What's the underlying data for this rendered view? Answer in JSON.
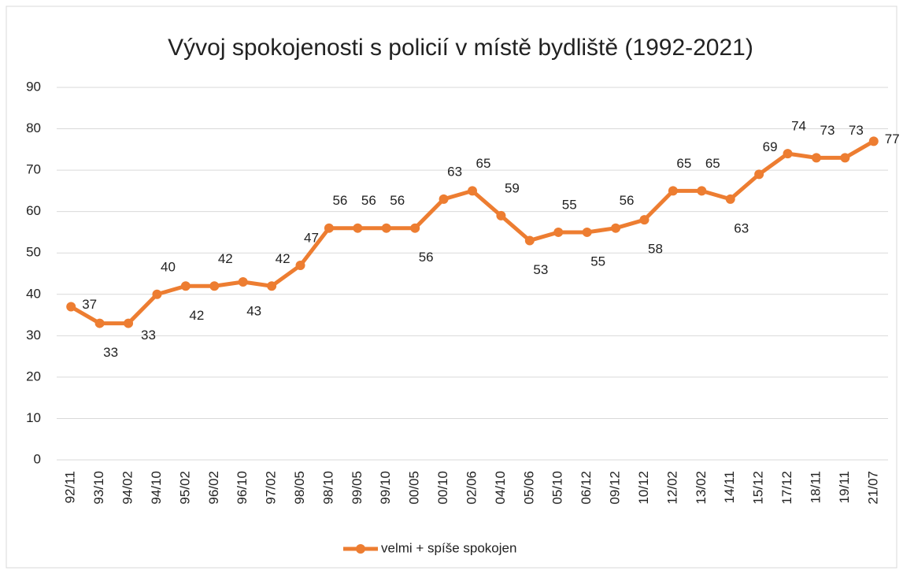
{
  "chart_data": {
    "type": "line",
    "title": "Vývoj spokojenosti s policií v místě bydliště (1992-2021)",
    "categories": [
      "92/11",
      "93/10",
      "94/02",
      "94/10",
      "95/02",
      "96/02",
      "96/10",
      "97/02",
      "98/05",
      "98/10",
      "99/05",
      "99/10",
      "00/05",
      "00/10",
      "02/06",
      "04/10",
      "05/06",
      "05/10",
      "06/12",
      "09/12",
      "10/12",
      "12/02",
      "13/02",
      "14/11",
      "15/12",
      "17/12",
      "18/11",
      "19/11",
      "21/07"
    ],
    "series": [
      {
        "name": "velmi + spíše spokojen",
        "color": "#ed7d31",
        "values": [
          37,
          33,
          33,
          40,
          42,
          42,
          43,
          42,
          47,
          56,
          56,
          56,
          56,
          63,
          65,
          59,
          53,
          55,
          55,
          56,
          58,
          65,
          65,
          63,
          69,
          74,
          73,
          73,
          77
        ]
      }
    ],
    "ylim": [
      0,
      90
    ],
    "yticks": [
      0,
      10,
      20,
      30,
      40,
      50,
      60,
      70,
      80,
      90
    ],
    "grid": true,
    "legend": "bottom"
  }
}
